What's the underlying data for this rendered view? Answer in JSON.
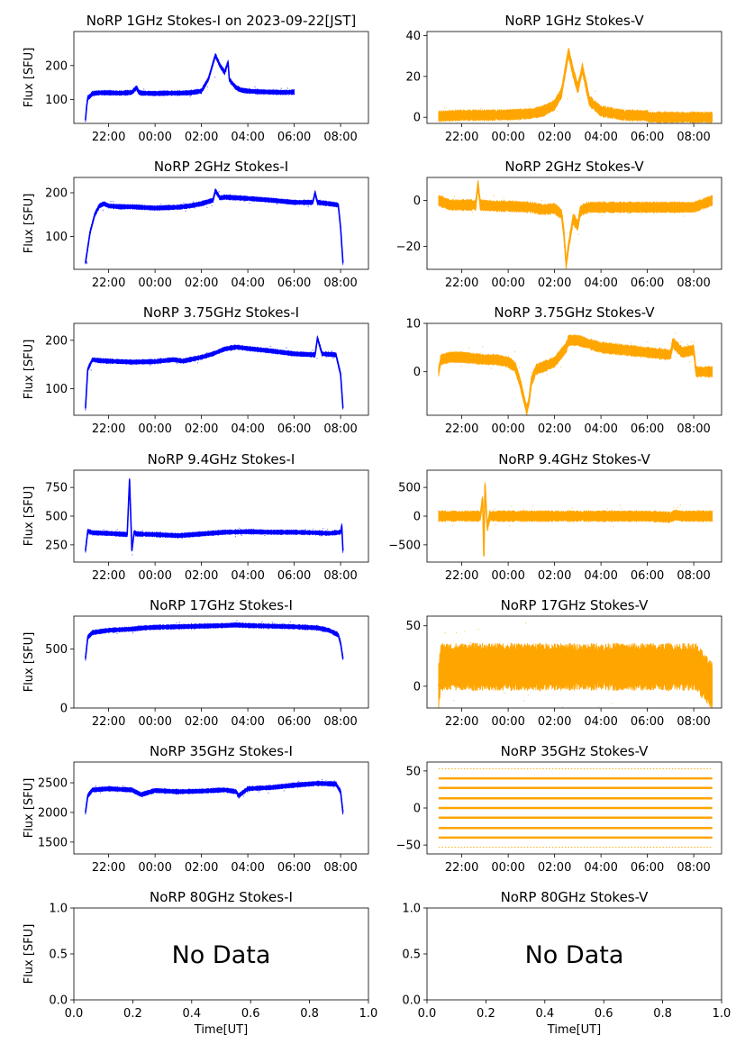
{
  "chart_data": [
    {
      "id": "p1i",
      "type": "line",
      "title": "NoRP 1GHz Stokes-I on 2023-09-22[JST]",
      "ylabel": "Flux [SFU]",
      "xlabel": "",
      "ylim": [
        30,
        300
      ],
      "yticks": [
        100,
        200
      ],
      "xlim": [
        20.5,
        33.2
      ],
      "xticks": [
        22,
        24,
        26,
        28,
        30,
        32
      ],
      "xtick_labels": [
        "22:00",
        "00:00",
        "02:00",
        "04:00",
        "06:00",
        "08:00"
      ],
      "color": "#0000ff",
      "nodata": "",
      "x": [
        21.0,
        21.05,
        21.1,
        21.2,
        21.3,
        21.6,
        22.0,
        22.5,
        23.0,
        23.2,
        23.3,
        23.4,
        24.0,
        24.5,
        25.0,
        25.5,
        26.0,
        26.3,
        26.6,
        26.8,
        27.0,
        27.15,
        27.2,
        27.3,
        27.5,
        27.7,
        28.0,
        28.5,
        29.0,
        29.5,
        30.0
      ],
      "y": [
        40,
        80,
        105,
        110,
        118,
        120,
        120,
        119,
        121,
        135,
        122,
        119,
        118,
        119,
        119,
        120,
        125,
        160,
        230,
        200,
        180,
        210,
        160,
        150,
        135,
        128,
        125,
        123,
        122,
        121,
        122
      ]
    },
    {
      "id": "p1v",
      "type": "line",
      "title": "NoRP 1GHz Stokes-V",
      "ylabel": "",
      "xlabel": "",
      "ylim": [
        -3,
        42
      ],
      "yticks": [
        0,
        20,
        40
      ],
      "xlim": [
        20.5,
        33.2
      ],
      "xticks": [
        22,
        24,
        26,
        28,
        30,
        32
      ],
      "xtick_labels": [
        "22:00",
        "00:00",
        "02:00",
        "04:00",
        "06:00",
        "08:00"
      ],
      "color": "#ffa500",
      "nodata": "",
      "x": [
        21.0,
        22.0,
        23.0,
        24.0,
        25.0,
        25.5,
        26.0,
        26.3,
        26.6,
        26.8,
        27.0,
        27.2,
        27.5,
        28.0,
        29.0,
        30.0,
        30.05,
        31.0,
        32.0,
        32.8
      ],
      "y": [
        0.5,
        1.0,
        1.0,
        1.2,
        1.8,
        3.0,
        6,
        12,
        32,
        22,
        14,
        24,
        8,
        3,
        1.0,
        0.8,
        0,
        0,
        0,
        0
      ]
    },
    {
      "id": "p2i",
      "type": "line",
      "title": "NoRP 2GHz Stokes-I",
      "ylabel": "Flux [SFU]",
      "xlabel": "",
      "ylim": [
        25,
        235
      ],
      "yticks": [
        100,
        200
      ],
      "xlim": [
        20.5,
        33.2
      ],
      "xticks": [
        22,
        24,
        26,
        28,
        30,
        32
      ],
      "xtick_labels": [
        "22:00",
        "00:00",
        "02:00",
        "04:00",
        "06:00",
        "08:00"
      ],
      "color": "#0000ff",
      "nodata": "",
      "x": [
        21.0,
        21.2,
        21.4,
        21.6,
        21.8,
        22.0,
        22.5,
        23.0,
        24.0,
        25.0,
        25.5,
        26.0,
        26.5,
        26.6,
        26.8,
        27.0,
        28.0,
        29.0,
        30.0,
        30.8,
        30.9,
        31.0,
        31.5,
        31.9,
        32.0,
        32.1
      ],
      "y": [
        40,
        110,
        150,
        170,
        175,
        170,
        168,
        168,
        165,
        167,
        170,
        175,
        183,
        205,
        188,
        190,
        187,
        183,
        178,
        178,
        200,
        178,
        175,
        172,
        120,
        40
      ]
    },
    {
      "id": "p2v",
      "type": "line",
      "title": "NoRP 2GHz Stokes-V",
      "ylabel": "",
      "xlabel": "",
      "ylim": [
        -30,
        10
      ],
      "yticks": [
        -20,
        0
      ],
      "xlim": [
        20.5,
        33.2
      ],
      "xticks": [
        22,
        24,
        26,
        28,
        30,
        32
      ],
      "xtick_labels": [
        "22:00",
        "00:00",
        "02:00",
        "04:00",
        "06:00",
        "08:00"
      ],
      "color": "#ffa500",
      "nodata": "",
      "x": [
        21.0,
        21.5,
        22.0,
        22.6,
        22.7,
        22.8,
        23.5,
        24.0,
        25.0,
        25.5,
        26.0,
        26.3,
        26.4,
        26.5,
        26.6,
        26.8,
        27.0,
        27.1,
        27.2,
        27.5,
        28.0,
        29.0,
        30.0,
        31.0,
        31.5,
        32.0,
        32.8
      ],
      "y": [
        0,
        -2,
        -2,
        -2,
        7,
        -2,
        -2.5,
        -2.5,
        -3,
        -4,
        -3.5,
        -6,
        -14,
        -28,
        -20,
        -8,
        -11,
        -5,
        -4,
        -3,
        -3,
        -3,
        -3,
        -3,
        -3,
        -3,
        0
      ]
    },
    {
      "id": "p3i",
      "type": "line",
      "title": "NoRP 3.75GHz Stokes-I",
      "ylabel": "Flux [SFU]",
      "xlabel": "",
      "ylim": [
        45,
        235
      ],
      "yticks": [
        100,
        200
      ],
      "xlim": [
        20.5,
        33.2
      ],
      "xticks": [
        22,
        24,
        26,
        28,
        30,
        32
      ],
      "xtick_labels": [
        "22:00",
        "00:00",
        "02:00",
        "04:00",
        "06:00",
        "08:00"
      ],
      "color": "#0000ff",
      "nodata": "",
      "x": [
        21.0,
        21.1,
        21.3,
        21.6,
        22.0,
        23.0,
        24.0,
        24.8,
        25.2,
        26.0,
        26.5,
        27.0,
        27.5,
        28.0,
        29.0,
        30.0,
        30.9,
        31.0,
        31.2,
        31.8,
        32.0,
        32.1
      ],
      "y": [
        60,
        140,
        160,
        158,
        157,
        155,
        156,
        160,
        157,
        165,
        172,
        182,
        186,
        183,
        178,
        172,
        170,
        205,
        172,
        170,
        130,
        60
      ]
    },
    {
      "id": "p3v",
      "type": "line",
      "title": "NoRP 3.75GHz Stokes-V",
      "ylabel": "",
      "xlabel": "",
      "ylim": [
        -9,
        10
      ],
      "yticks": [
        0,
        10
      ],
      "xlim": [
        20.5,
        33.2
      ],
      "xticks": [
        22,
        24,
        26,
        28,
        30,
        32
      ],
      "xtick_labels": [
        "22:00",
        "00:00",
        "02:00",
        "04:00",
        "06:00",
        "08:00"
      ],
      "color": "#ffa500",
      "nodata": "",
      "x": [
        21.0,
        21.1,
        21.5,
        22.0,
        23.0,
        23.5,
        24.0,
        24.3,
        24.5,
        24.7,
        24.8,
        24.9,
        25.0,
        25.2,
        25.5,
        26.0,
        26.5,
        26.6,
        27.0,
        28.0,
        29.0,
        30.0,
        31.0,
        31.1,
        31.5,
        32.0,
        32.1,
        32.8
      ],
      "y": [
        0,
        2.5,
        3,
        3,
        2.5,
        2.5,
        2,
        1,
        -2,
        -6,
        -8,
        -6,
        -2,
        0.5,
        1,
        2,
        5,
        6.5,
        6.5,
        5,
        4.5,
        4,
        3.5,
        6,
        4,
        4.5,
        0,
        0
      ]
    },
    {
      "id": "p4i",
      "type": "line",
      "title": "NoRP 9.4GHz Stokes-I",
      "ylabel": "Flux [SFU]",
      "xlabel": "",
      "ylim": [
        100,
        900
      ],
      "yticks": [
        250,
        500,
        750
      ],
      "xlim": [
        20.5,
        33.2
      ],
      "xticks": [
        22,
        24,
        26,
        28,
        30,
        32
      ],
      "xtick_labels": [
        "22:00",
        "00:00",
        "02:00",
        "04:00",
        "06:00",
        "08:00"
      ],
      "color": "#0000ff",
      "nodata": "",
      "x": [
        21.0,
        21.1,
        21.3,
        22.0,
        22.8,
        22.9,
        23.0,
        23.1,
        23.2,
        24.0,
        25.0,
        26.0,
        27.0,
        28.0,
        29.0,
        30.0,
        31.0,
        31.5,
        32.0,
        32.05,
        32.1
      ],
      "y": [
        200,
        370,
        355,
        350,
        340,
        820,
        200,
        360,
        345,
        340,
        330,
        345,
        360,
        365,
        360,
        360,
        355,
        350,
        360,
        420,
        200
      ]
    },
    {
      "id": "p4v",
      "type": "line",
      "title": "NoRP 9.4GHz Stokes-V",
      "ylabel": "",
      "xlabel": "",
      "ylim": [
        -800,
        800
      ],
      "yticks": [
        -500,
        0,
        500
      ],
      "xlim": [
        20.5,
        33.2
      ],
      "xticks": [
        22,
        24,
        26,
        28,
        30,
        32
      ],
      "xtick_labels": [
        "22:00",
        "00:00",
        "02:00",
        "04:00",
        "06:00",
        "08:00"
      ],
      "color": "#ffa500",
      "nodata": "",
      "x": [
        21.0,
        22.0,
        22.8,
        22.9,
        22.95,
        23.0,
        23.1,
        23.2,
        24.0,
        26.0,
        28.0,
        30.0,
        31.0,
        31.2,
        31.5,
        32.0,
        32.8
      ],
      "y": [
        0,
        0,
        0,
        300,
        -700,
        550,
        -200,
        0,
        0,
        0,
        0,
        0,
        -20,
        20,
        0,
        0,
        0
      ]
    },
    {
      "id": "p5i",
      "type": "line",
      "title": "NoRP 17GHz Stokes-I",
      "ylabel": "Flux [SFU]",
      "xlabel": "",
      "ylim": [
        0,
        780
      ],
      "yticks": [
        0,
        500
      ],
      "xlim": [
        20.5,
        33.2
      ],
      "xticks": [
        22,
        24,
        26,
        28,
        30,
        32
      ],
      "xtick_labels": [
        "22:00",
        "00:00",
        "02:00",
        "04:00",
        "06:00",
        "08:00"
      ],
      "color": "#0000ff",
      "nodata": "",
      "x": [
        21.0,
        21.1,
        21.3,
        22.0,
        23.0,
        23.5,
        24.0,
        25.0,
        26.0,
        27.0,
        27.5,
        28.0,
        29.0,
        30.0,
        31.0,
        31.5,
        31.9,
        32.0,
        32.1
      ],
      "y": [
        420,
        600,
        640,
        660,
        670,
        680,
        685,
        690,
        695,
        700,
        705,
        700,
        695,
        690,
        680,
        660,
        620,
        550,
        420
      ]
    },
    {
      "id": "p5v",
      "type": "line",
      "title": "NoRP 17GHz Stokes-V",
      "ylabel": "",
      "xlabel": "",
      "ylim": [
        -18,
        58
      ],
      "yticks": [
        0,
        50
      ],
      "xlim": [
        20.5,
        33.2
      ],
      "xticks": [
        22,
        24,
        26,
        28,
        30,
        32
      ],
      "xtick_labels": [
        "22:00",
        "00:00",
        "02:00",
        "04:00",
        "06:00",
        "08:00"
      ],
      "color": "#ffa500",
      "nodata": "",
      "x": [
        21.0,
        21.1,
        32.1,
        32.8
      ],
      "y": [
        0,
        16,
        16,
        0
      ]
    },
    {
      "id": "p6i",
      "type": "line",
      "title": "NoRP 35GHz Stokes-I",
      "ylabel": "Flux [SFU]",
      "xlabel": "",
      "ylim": [
        1300,
        2850
      ],
      "yticks": [
        1500,
        2000,
        2500
      ],
      "xlim": [
        20.5,
        33.2
      ],
      "xticks": [
        22,
        24,
        26,
        28,
        30,
        32
      ],
      "xtick_labels": [
        "22:00",
        "00:00",
        "02:00",
        "04:00",
        "06:00",
        "08:00"
      ],
      "color": "#0000ff",
      "nodata": "",
      "x": [
        21.0,
        21.1,
        21.3,
        22.0,
        23.0,
        23.4,
        24.0,
        25.0,
        26.0,
        27.0,
        27.5,
        27.6,
        28.0,
        29.0,
        30.0,
        31.0,
        31.8,
        32.0,
        32.1
      ],
      "y": [
        2000,
        2280,
        2380,
        2400,
        2380,
        2300,
        2370,
        2350,
        2360,
        2380,
        2350,
        2280,
        2400,
        2420,
        2460,
        2490,
        2480,
        2350,
        2000
      ]
    },
    {
      "id": "p6v",
      "type": "line",
      "title": "NoRP 35GHz Stokes-V",
      "ylabel": "",
      "xlabel": "",
      "ylim": [
        -62,
        62
      ],
      "yticks": [
        -50,
        0,
        50
      ],
      "xlim": [
        20.5,
        33.2
      ],
      "xticks": [
        22,
        24,
        26,
        28,
        30,
        32
      ],
      "xtick_labels": [
        "22:00",
        "00:00",
        "02:00",
        "04:00",
        "06:00",
        "08:00"
      ],
      "color": "#ffa500",
      "nodata": "",
      "levels": [
        -53,
        -40,
        -27,
        -13,
        0,
        13,
        27,
        40,
        53
      ],
      "x": [
        21.0,
        32.8
      ],
      "y": [
        0,
        0
      ]
    },
    {
      "id": "p7i",
      "type": "line",
      "title": "NoRP 80GHz Stokes-I",
      "ylabel": "Flux [SFU]",
      "xlabel": "Time[UT]",
      "ylim": [
        0,
        1
      ],
      "yticks": [
        0.0,
        0.5,
        1.0
      ],
      "ytick_labels": [
        "0.0",
        "0.5",
        "1.0"
      ],
      "xlim": [
        0,
        1
      ],
      "xticks": [
        0.0,
        0.2,
        0.4,
        0.6,
        0.8,
        1.0
      ],
      "xtick_labels": [
        "0.0",
        "0.2",
        "0.4",
        "0.6",
        "0.8",
        "1.0"
      ],
      "color": "#0000ff",
      "nodata": "No Data",
      "x": [],
      "y": []
    },
    {
      "id": "p7v",
      "type": "line",
      "title": "NoRP 80GHz Stokes-V",
      "ylabel": "",
      "xlabel": "Time[UT]",
      "ylim": [
        0,
        1
      ],
      "yticks": [
        0.0,
        0.5,
        1.0
      ],
      "ytick_labels": [
        "0.0",
        "0.5",
        "1.0"
      ],
      "xlim": [
        0,
        1
      ],
      "xticks": [
        0.0,
        0.2,
        0.4,
        0.6,
        0.8,
        1.0
      ],
      "xtick_labels": [
        "0.0",
        "0.2",
        "0.4",
        "0.6",
        "0.8",
        "1.0"
      ],
      "color": "#ffa500",
      "nodata": "No Data",
      "x": [],
      "y": []
    }
  ]
}
